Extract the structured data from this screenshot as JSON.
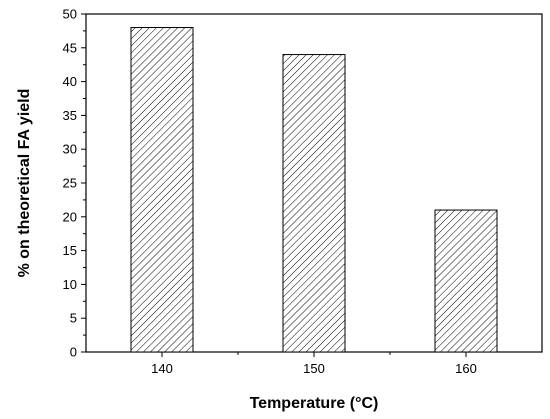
{
  "chart_data": {
    "type": "bar",
    "categories": [
      "140",
      "150",
      "160"
    ],
    "values": [
      48,
      44,
      21
    ],
    "title": "",
    "xlabel": "Temperature (°C)",
    "ylabel": "% on theoretical FA yield",
    "ylim": [
      0,
      50
    ],
    "yticks": [
      "0",
      "5",
      "10",
      "15",
      "20",
      "25",
      "30",
      "35",
      "40",
      "45",
      "50"
    ],
    "grid": false,
    "bar_fill": "diagonal-hatch",
    "colors": {
      "bar_stroke": "#000000",
      "hatch": "#000000",
      "axis": "#000000",
      "background": "#ffffff"
    }
  }
}
